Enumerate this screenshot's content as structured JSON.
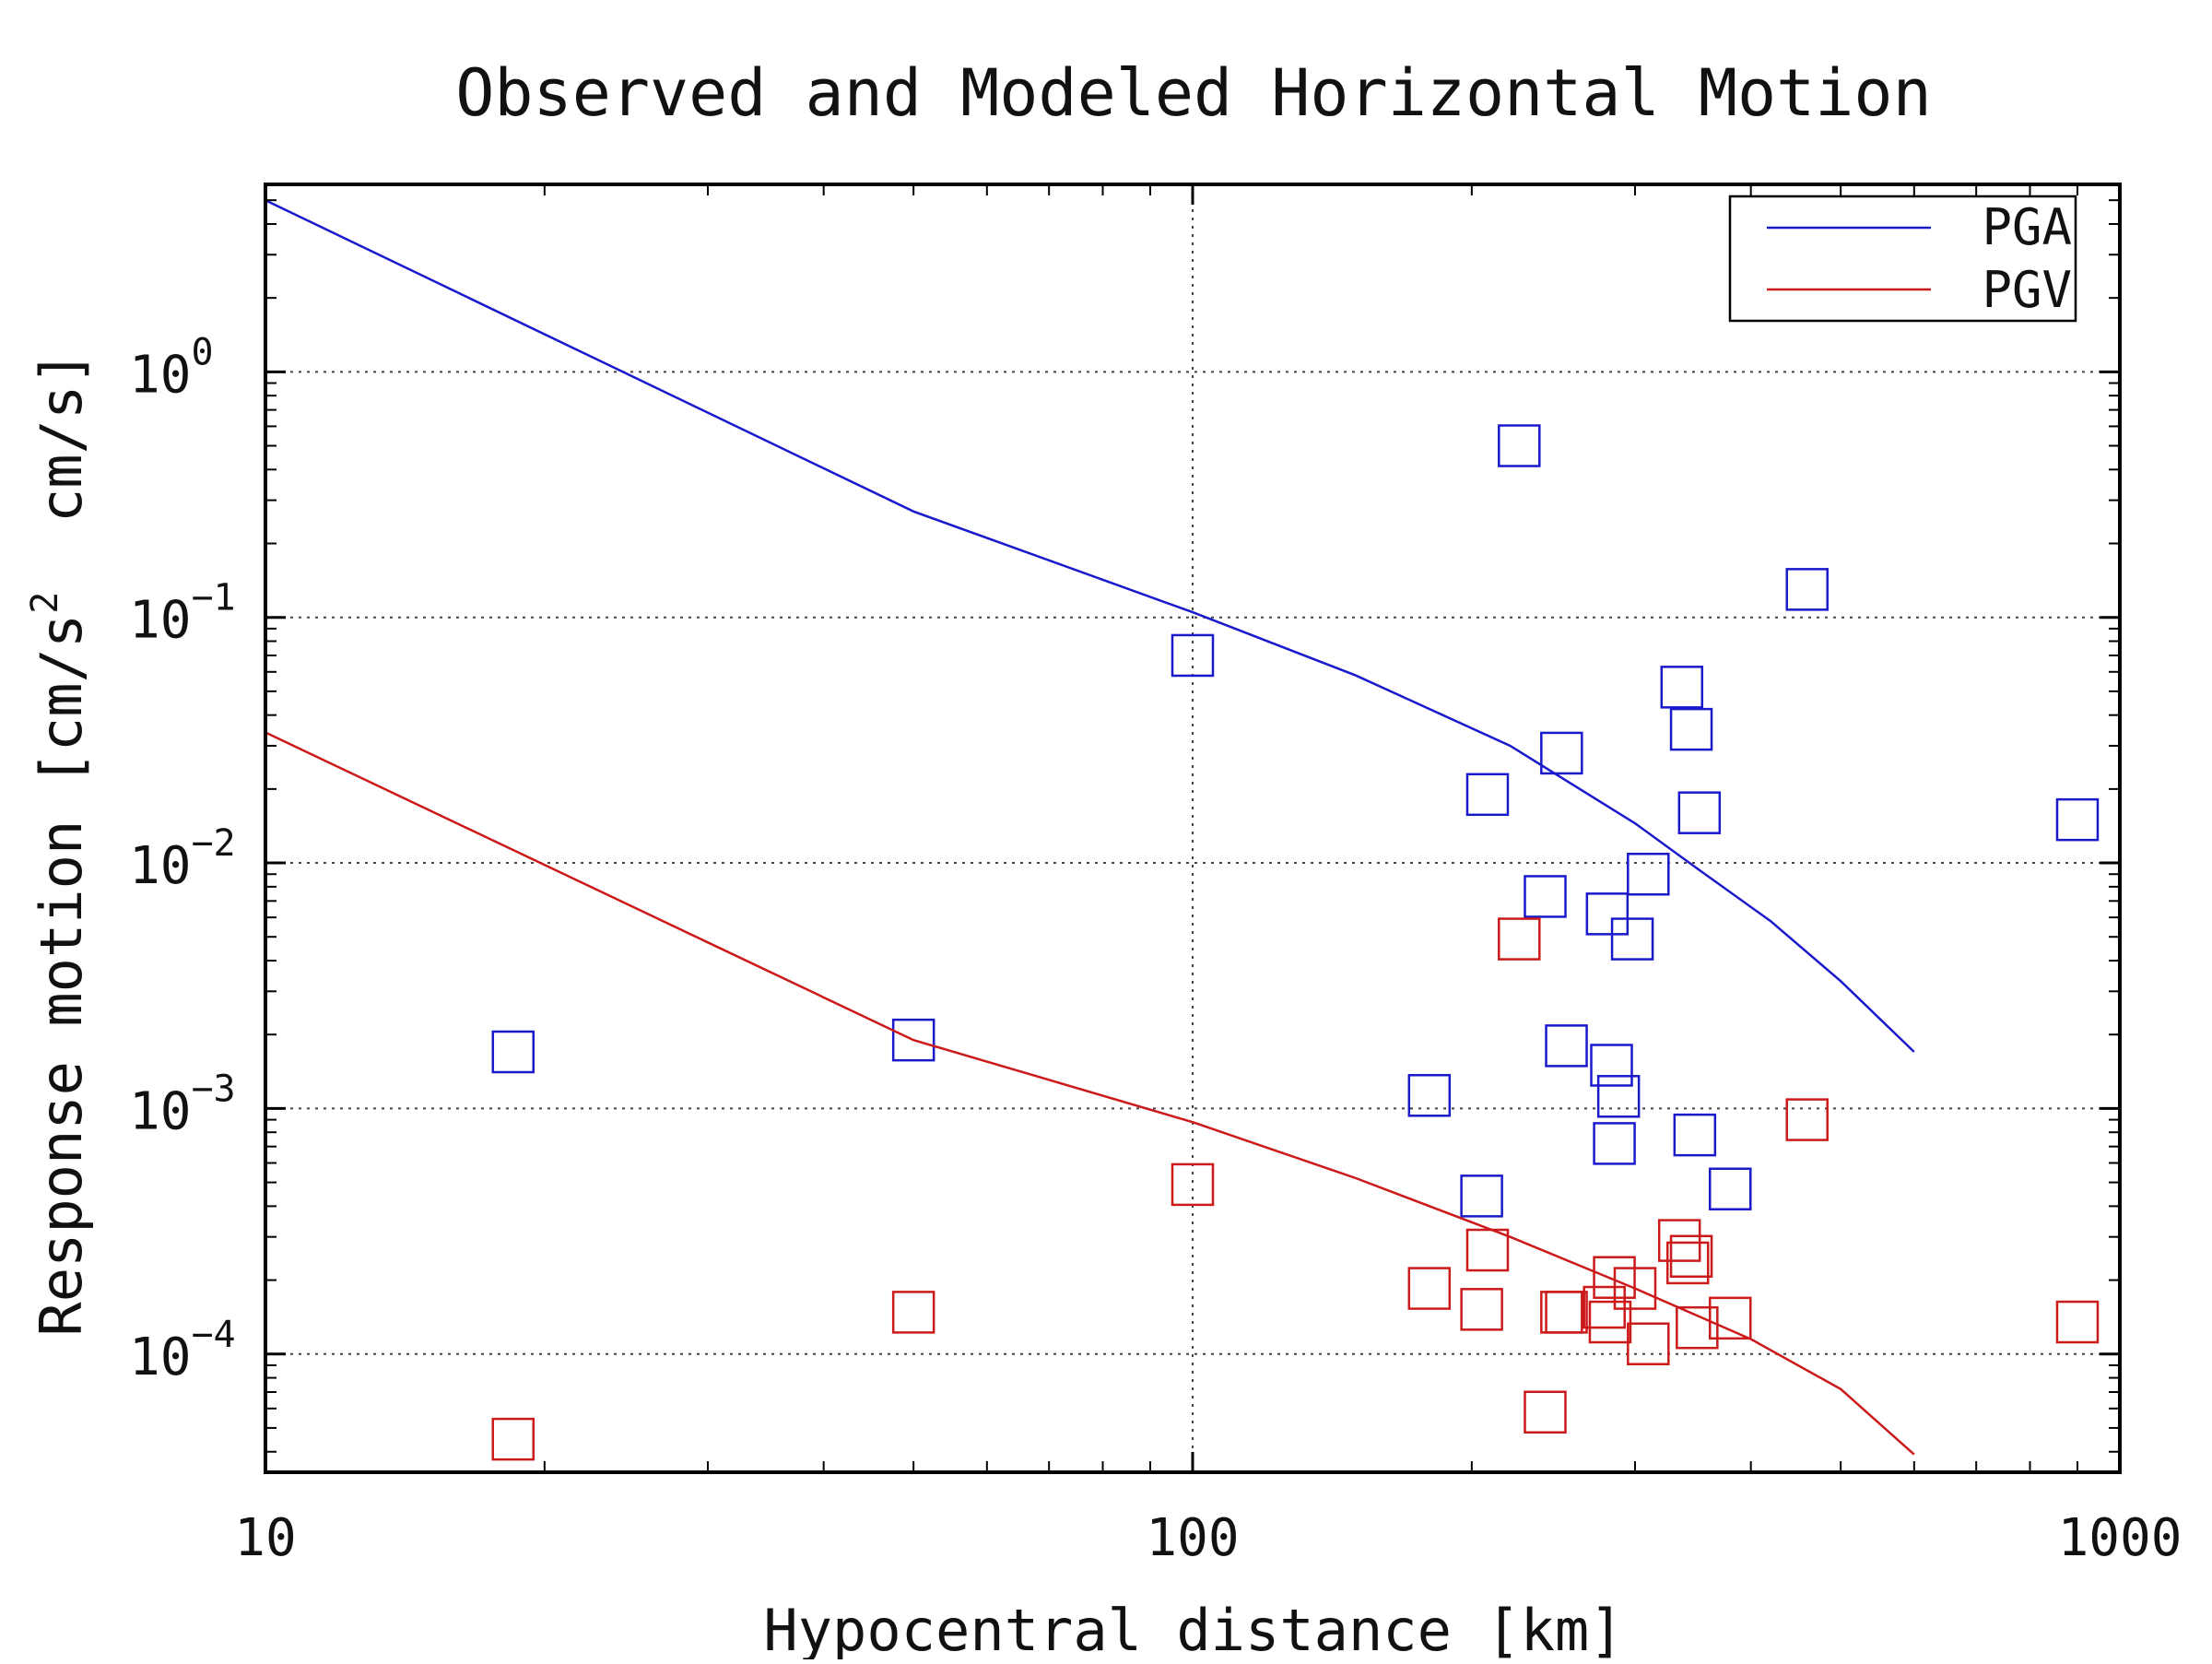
{
  "chart_data": {
    "type": "scatter",
    "title": "Observed and Modeled Horizontal Motion",
    "xlabel": "Hypocentral distance [km]",
    "ylabel": "Response motion [cm/s² cm/s]",
    "ylabel_parts": {
      "pre": "Response motion [cm/s",
      "sup": "2",
      "post": "  cm/s]"
    },
    "x_scale": "log",
    "y_scale": "log",
    "xlim": [
      10,
      1000
    ],
    "ylim": [
      3.3e-05,
      5.8
    ],
    "x_ticks": [
      {
        "value": 10,
        "label": "10"
      },
      {
        "value": 100,
        "label": "100"
      },
      {
        "value": 1000,
        "label": "1000"
      }
    ],
    "y_ticks": [
      {
        "value": 1,
        "base": "10",
        "exp": "0"
      },
      {
        "value": 0.1,
        "base": "10",
        "exp": "−1"
      },
      {
        "value": 0.01,
        "base": "10",
        "exp": "−2"
      },
      {
        "value": 0.001,
        "base": "10",
        "exp": "−3"
      },
      {
        "value": 0.0001,
        "base": "10",
        "exp": "−4"
      }
    ],
    "grid": true,
    "legend_position": "top-right",
    "series": [
      {
        "name": "PGA",
        "color": "#1a1acc",
        "curve": [
          [
            10,
            5.0
          ],
          [
            50,
            0.27
          ],
          [
            100,
            0.105
          ],
          [
            150,
            0.058
          ],
          [
            220,
            0.03
          ],
          [
            300,
            0.0145
          ],
          [
            350,
            0.0095
          ],
          [
            420,
            0.0058
          ],
          [
            500,
            0.0033
          ],
          [
            600,
            0.0017
          ]
        ],
        "points": [
          [
            18.5,
            0.0017
          ],
          [
            50,
            0.0019
          ],
          [
            100,
            0.07
          ],
          [
            180,
            0.00113
          ],
          [
            205,
            0.00044
          ],
          [
            208,
            0.019
          ],
          [
            225,
            0.5
          ],
          [
            240,
            0.0073
          ],
          [
            250,
            0.028
          ],
          [
            253,
            0.0018
          ],
          [
            280,
            0.0062
          ],
          [
            283,
            0.0015
          ],
          [
            285,
            0.00072
          ],
          [
            288,
            0.00112
          ],
          [
            298,
            0.0049
          ],
          [
            310,
            0.009
          ],
          [
            337,
            0.052
          ],
          [
            345,
            0.035
          ],
          [
            348,
            0.00078
          ],
          [
            352,
            0.016
          ],
          [
            380,
            0.00047
          ],
          [
            460,
            0.13
          ],
          [
            900,
            0.015
          ]
        ]
      },
      {
        "name": "PGV",
        "color": "#cc1a1a",
        "curve": [
          [
            10,
            0.034
          ],
          [
            50,
            0.0019
          ],
          [
            100,
            0.00088
          ],
          [
            150,
            0.00052
          ],
          [
            220,
            0.0003
          ],
          [
            300,
            0.000185
          ],
          [
            400,
            0.000115
          ],
          [
            500,
            7.2e-05
          ],
          [
            600,
            3.9e-05
          ]
        ],
        "points": [
          [
            18.5,
            4.5e-05
          ],
          [
            50,
            0.000148
          ],
          [
            100,
            0.00049
          ],
          [
            180,
            0.000185
          ],
          [
            205,
            0.000152
          ],
          [
            208,
            0.000265
          ],
          [
            225,
            0.0049
          ],
          [
            240,
            5.8e-05
          ],
          [
            250,
            0.000148
          ],
          [
            253,
            0.000148
          ],
          [
            278,
            0.000155
          ],
          [
            282,
            0.000135
          ],
          [
            285,
            0.000205
          ],
          [
            300,
            0.000185
          ],
          [
            310,
            0.00011
          ],
          [
            335,
            0.00029
          ],
          [
            342,
            0.000235
          ],
          [
            345,
            0.00025
          ],
          [
            350,
            0.000128
          ],
          [
            380,
            0.00014
          ],
          [
            460,
            0.0009
          ],
          [
            900,
            0.000135
          ]
        ]
      }
    ]
  }
}
